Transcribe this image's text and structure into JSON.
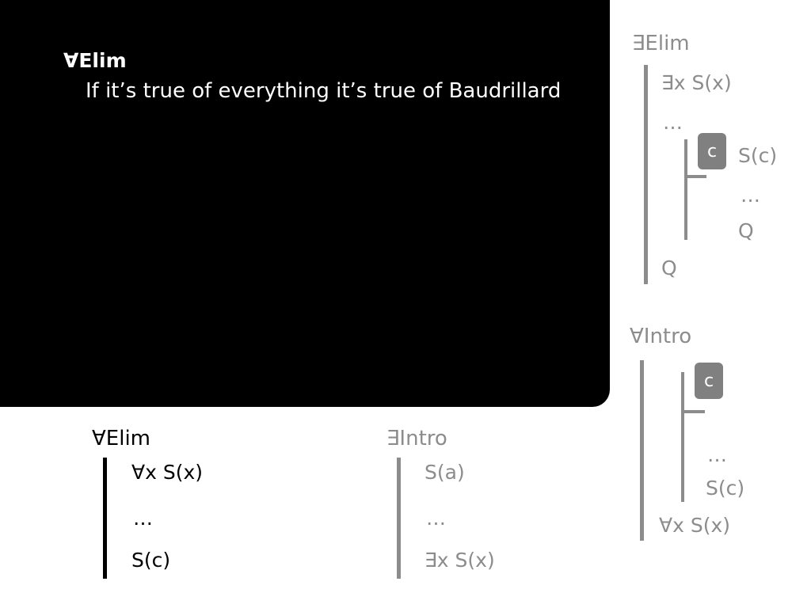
{
  "colors": {
    "panel_bg": "#000000",
    "panel_text": "#ffffff",
    "active_text": "#000000",
    "muted_text": "#8c8c8c",
    "muted_bar": "#8c8c8c",
    "box_fill": "#808080"
  },
  "panel": {
    "title": "∀Elim",
    "description": "If it’s true of everything it’s true of Baudrillard"
  },
  "forall_elim": {
    "heading": "∀Elim",
    "premise": "∀x S(x)",
    "dots": "…",
    "conclusion": "S(c)"
  },
  "exists_intro": {
    "heading": "∃Intro",
    "premise": "S(a)",
    "dots": "…",
    "conclusion": "∃x S(x)"
  },
  "exists_elim": {
    "heading": "∃Elim",
    "premise": "∃x S(x)",
    "dots": "…",
    "box_label": "c",
    "sub_assumption": "S(c)",
    "sub_dots": "…",
    "sub_conclusion": "Q",
    "conclusion": "Q"
  },
  "forall_intro": {
    "heading": "∀Intro",
    "box_label": "c",
    "sub_dots": "…",
    "sub_conclusion": "S(c)",
    "conclusion": "∀x S(x)"
  }
}
